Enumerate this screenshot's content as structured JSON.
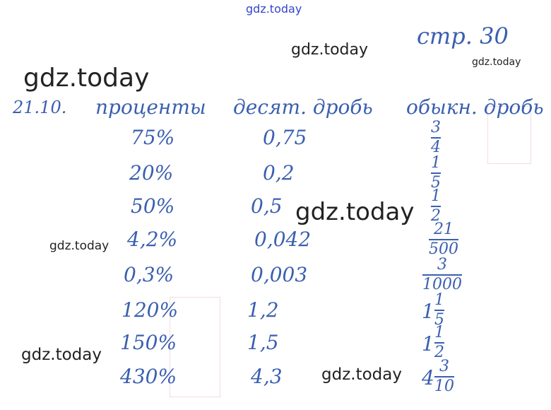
{
  "page_ref": "стр. 30",
  "task_number": "21.10.",
  "headers": [
    "проценты",
    "десят. дробь",
    "обыкн. дробь"
  ],
  "rows": [
    {
      "percent": "75%",
      "decimal": "0,75",
      "fraction": {
        "whole": "",
        "num": "3",
        "den": "4"
      }
    },
    {
      "percent": "20%",
      "decimal": "0,2",
      "fraction": {
        "whole": "",
        "num": "1",
        "den": "5"
      }
    },
    {
      "percent": "50%",
      "decimal": "0,5",
      "fraction": {
        "whole": "",
        "num": "1",
        "den": "2"
      }
    },
    {
      "percent": "4,2%",
      "decimal": "0,042",
      "fraction": {
        "whole": "",
        "num": "21",
        "den": "500"
      }
    },
    {
      "percent": "0,3%",
      "decimal": "0,003",
      "fraction": {
        "whole": "",
        "num": "3",
        "den": "1000"
      }
    },
    {
      "percent": "120%",
      "decimal": "1,2",
      "fraction": {
        "whole": "1",
        "num": "1",
        "den": "5"
      }
    },
    {
      "percent": "150%",
      "decimal": "1,5",
      "fraction": {
        "whole": "1",
        "num": "1",
        "den": "2"
      }
    },
    {
      "percent": "430%",
      "decimal": "4,3",
      "fraction": {
        "whole": "4",
        "num": "3",
        "den": "10"
      }
    }
  ],
  "watermarks": [
    "gdz.today",
    "gdz.today",
    "gdz.today",
    "gdz.today",
    "gdz.today",
    "gdz.today",
    "gdz.today",
    "gdz.today"
  ]
}
